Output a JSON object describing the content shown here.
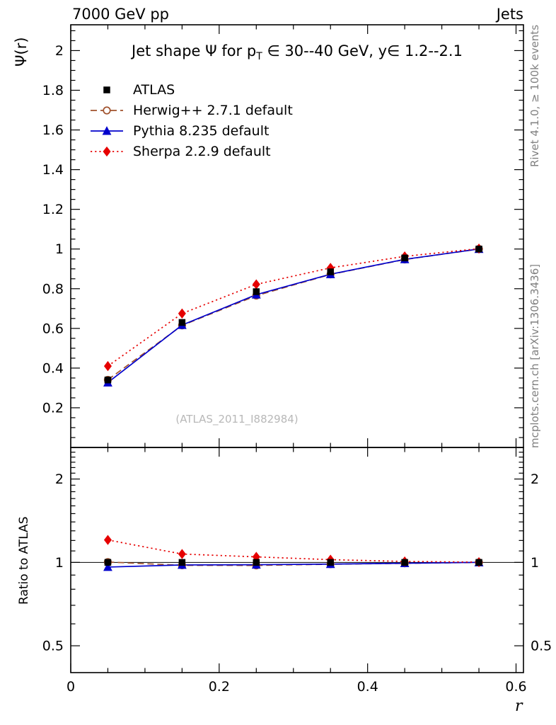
{
  "header": {
    "left": "7000 GeV pp",
    "right": "Jets"
  },
  "title": {
    "pre": "Jet shape Ψ for p",
    "sub": "T",
    "post": " ∈ 30--40 GeV, y∈ 1.2--2.1"
  },
  "watermark": "(ATLAS_2011_I882984)",
  "side_labels": {
    "top_right": "Rivet 4.1.0, ≥ 100k events",
    "bottom_right": "mcplots.cern.ch [arXiv:1306.3436]"
  },
  "chart_data": {
    "type": "line",
    "title": "Jet shape Ψ for pT ∈ 30--40 GeV, y ∈ 1.2--2.1",
    "x": [
      0.05,
      0.15,
      0.25,
      0.35,
      0.45,
      0.55
    ],
    "series": [
      {
        "name": "ATLAS",
        "color": "#000000",
        "marker": "square",
        "marker_size": 9.5,
        "line": "none",
        "values": [
          0.34,
          0.63,
          0.785,
          0.885,
          0.955,
          1.0
        ],
        "errors": [
          0.012,
          0.012,
          0.01,
          0.007,
          0.005,
          0.003
        ],
        "ratio": [
          1.0,
          1.0,
          1.0,
          1.0,
          1.0,
          1.0
        ],
        "ratio_errors": [
          0.035,
          0.02,
          0.013,
          0.009,
          0.006,
          0.004
        ]
      },
      {
        "name": "Herwig++ 2.7.1 default",
        "color": "#a0522d",
        "marker": "circle-open",
        "marker_size": 9.5,
        "line": "dashed",
        "values": [
          0.341,
          0.615,
          0.765,
          0.872,
          0.947,
          1.0
        ],
        "ratio": [
          1.003,
          0.976,
          0.975,
          0.985,
          0.992,
          1.0
        ]
      },
      {
        "name": "Pythia 8.235 default",
        "color": "#0000cc",
        "marker": "triangle",
        "marker_size": 11,
        "line": "solid",
        "values": [
          0.327,
          0.617,
          0.77,
          0.873,
          0.948,
          1.0
        ],
        "ratio": [
          0.962,
          0.979,
          0.981,
          0.986,
          0.993,
          1.0
        ]
      },
      {
        "name": "Sherpa 2.2.9 default",
        "color": "#e60000",
        "marker": "diamond",
        "marker_size": 11,
        "line": "dotted",
        "values": [
          0.41,
          0.675,
          0.822,
          0.905,
          0.963,
          1.002
        ],
        "ratio": [
          1.205,
          1.072,
          1.047,
          1.023,
          1.008,
          1.002
        ]
      }
    ],
    "axes": {
      "x": {
        "label": "r",
        "min": 0,
        "max": 0.61,
        "minor_step": 0.05,
        "major_ticks": [
          0,
          0.2,
          0.4,
          0.6
        ],
        "major_labels": [
          "0",
          "0.2",
          "0.4",
          "0.6"
        ]
      },
      "y_main": {
        "label": "Ψ(r)",
        "min": 0,
        "max": 2.13,
        "minor_step": 0.05,
        "major_ticks": [
          0.2,
          0.4,
          0.6,
          0.8,
          1.0,
          1.2,
          1.4,
          1.6,
          1.8,
          2.0
        ],
        "major_labels": [
          "0.2",
          "0.4",
          "0.6",
          "0.8",
          "1",
          "1.2",
          "1.4",
          "1.6",
          "1.8",
          "2"
        ]
      },
      "y_ratio": {
        "label": "Ratio to ATLAS",
        "scale": "log",
        "min": 0.4,
        "max": 2.6,
        "major_ticks": [
          0.5,
          1,
          2
        ],
        "major_labels": [
          "0.5",
          "1",
          "2"
        ],
        "minor_ticks": [
          0.6,
          0.7,
          0.8,
          0.9,
          1.1,
          1.2,
          1.3,
          1.4,
          1.5,
          1.6,
          1.7,
          1.8,
          1.9,
          2.1,
          2.2,
          2.3,
          2.4,
          2.5
        ]
      }
    },
    "legend_position": "top-left",
    "grid": false
  }
}
